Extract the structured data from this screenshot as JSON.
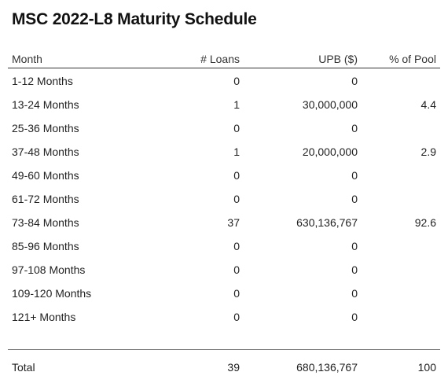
{
  "title": "MSC 2022-L8 Maturity Schedule",
  "columns": {
    "month": "Month",
    "loans": "# Loans",
    "upb": "UPB ($)",
    "pct": "% of Pool"
  },
  "rows": [
    {
      "month": "1-12 Months",
      "loans": "0",
      "upb": "0",
      "pct": ""
    },
    {
      "month": "13-24 Months",
      "loans": "1",
      "upb": "30,000,000",
      "pct": "4.4"
    },
    {
      "month": "25-36 Months",
      "loans": "0",
      "upb": "0",
      "pct": ""
    },
    {
      "month": "37-48 Months",
      "loans": "1",
      "upb": "20,000,000",
      "pct": "2.9"
    },
    {
      "month": "49-60 Months",
      "loans": "0",
      "upb": "0",
      "pct": ""
    },
    {
      "month": "61-72 Months",
      "loans": "0",
      "upb": "0",
      "pct": ""
    },
    {
      "month": "73-84 Months",
      "loans": "37",
      "upb": "630,136,767",
      "pct": "92.6"
    },
    {
      "month": "85-96 Months",
      "loans": "0",
      "upb": "0",
      "pct": ""
    },
    {
      "month": "97-108 Months",
      "loans": "0",
      "upb": "0",
      "pct": ""
    },
    {
      "month": "109-120 Months",
      "loans": "0",
      "upb": "0",
      "pct": ""
    },
    {
      "month": "121+ Months",
      "loans": "0",
      "upb": "0",
      "pct": ""
    }
  ],
  "total": {
    "month": "Total",
    "loans": "39",
    "upb": "680,136,767",
    "pct": "100"
  }
}
